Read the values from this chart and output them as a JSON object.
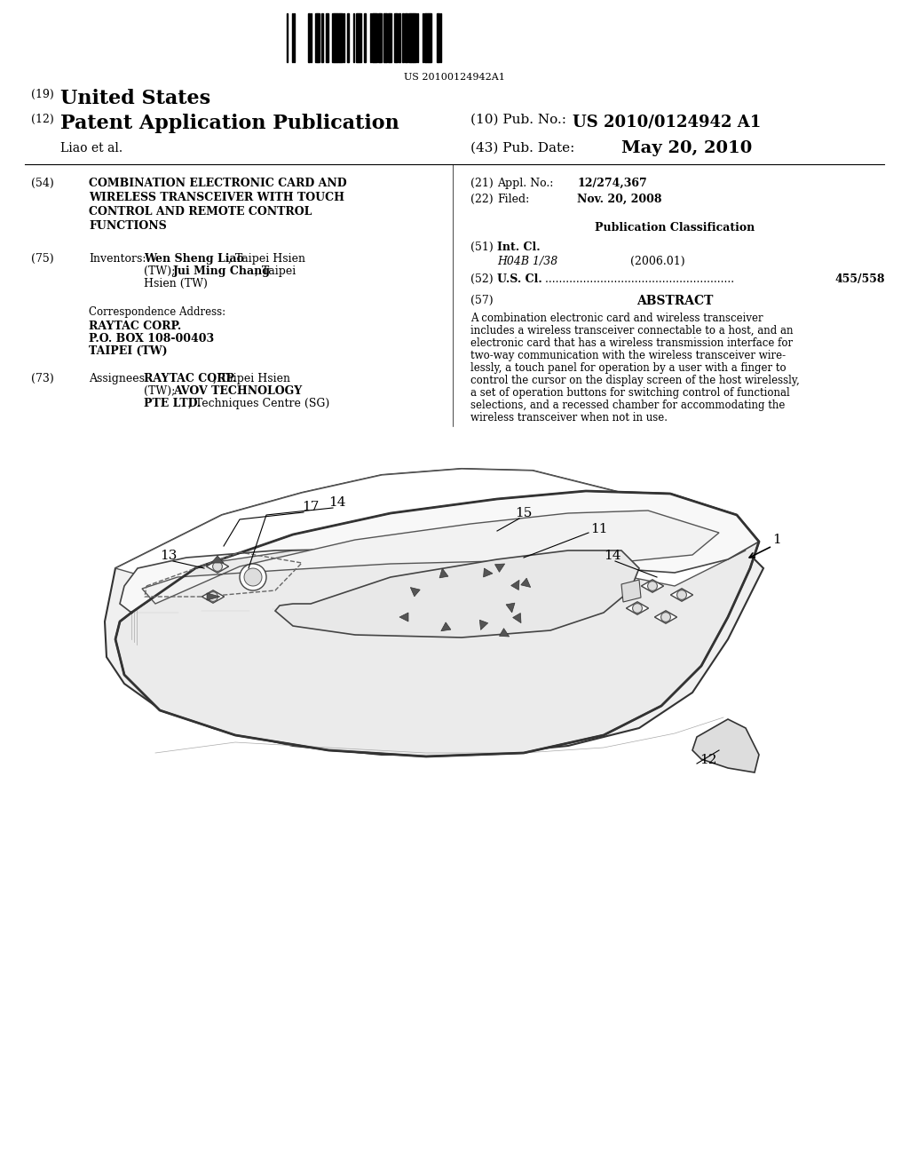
{
  "background_color": "#ffffff",
  "barcode_text": "US 20100124942A1",
  "patent_number_line": "(19) United States",
  "patent_type_line": "(12) Patent Application Publication",
  "pub_no_label": "(10) Pub. No.:",
  "pub_no_value": "US 2010/0124942 A1",
  "inventors_label": "Liao et al.",
  "pub_date_label": "(43) Pub. Date:",
  "pub_date_value": "May 20, 2010",
  "title_num": "(54)",
  "title_text": "COMBINATION ELECTRONIC CARD AND\nWIRELESS TRANSCEIVER WITH TOUCH\nCONTROL AND REMOTE CONTROL\nFUNCTIONS",
  "inventors_num": "(75)",
  "inventors_label2": "Inventors:",
  "inventors_text": "Wen Sheng Liao, Taipei Hsien\n(TW); Jui Ming Chang, Taipei\nHsien (TW)",
  "corr_addr_label": "Correspondence Address:",
  "corr_addr_text": "RAYTAC CORP.\nP.O. BOX 108-00403\nTAIPEI (TW)",
  "assignees_num": "(73)",
  "assignees_label": "Assignees:",
  "assignees_text": "RAYTAC CORP., Taipei Hsien\n(TW); AVOV TECHNOLOGY\nPTE LTD., Techniques Centre (SG)",
  "appl_no_num": "(21)",
  "appl_no_label": "Appl. No.:",
  "appl_no_value": "12/274,367",
  "filed_num": "(22)",
  "filed_label": "Filed:",
  "filed_value": "Nov. 20, 2008",
  "pub_class_header": "Publication Classification",
  "int_cl_num": "(51)",
  "int_cl_label": "Int. Cl.",
  "int_cl_value": "H04B 1/38",
  "int_cl_year": "(2006.01)",
  "us_cl_num": "(52)",
  "us_cl_label": "U.S. Cl.",
  "us_cl_value": "455/558",
  "abstract_num": "(57)",
  "abstract_header": "ABSTRACT",
  "abstract_text": "A combination electronic card and wireless transceiver\nincludes a wireless transceiver connectable to a host, and an\nelectronic card that has a wireless transmission interface for\ntwo-way communication with the wireless transceiver wire-\nlessly, a touch panel for operation by a user with a finger to\ncontrol the cursor on the display screen of the host wirelessly,\na set of operation buttons for switching control of functional\nselections, and a recessed chamber for accommodating the\nwireless transceiver when not in use."
}
